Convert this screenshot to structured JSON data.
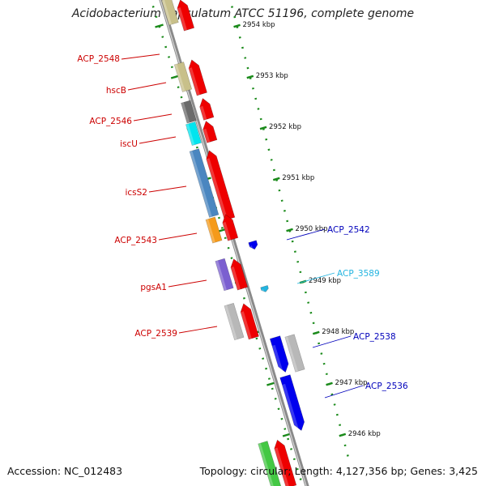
{
  "title": "Acidobacterium capsulatum ATCC 51196, complete genome",
  "footer": {
    "accession": "Accession: NC_012483",
    "stats": "Topology: circular; Length: 4,127,356 bp; Genes: 3,425"
  },
  "colors": {
    "backbone": "#8a8a8a",
    "tick": "#1a8a1a",
    "forward_label": "#cc0000",
    "reverse_label": "#0000bb",
    "light_label": "#22b4e0"
  },
  "ticks": [
    "2954 kbp",
    "2953 kbp",
    "2952 kbp",
    "2951 kbp",
    "2950 kbp",
    "2949 kbp",
    "2948 kbp",
    "2947 kbp",
    "2946 kbp"
  ],
  "left_labels": [
    {
      "text": "ACP_2548"
    },
    {
      "text": "hscB"
    },
    {
      "text": "ACP_2546"
    },
    {
      "text": "iscU"
    },
    {
      "text": "icsS2"
    },
    {
      "text": "ACP_2543"
    },
    {
      "text": "pgsA1"
    },
    {
      "text": "ACP_2539"
    }
  ],
  "right_labels": [
    {
      "text": "ACP_2542",
      "color": "#0000bb"
    },
    {
      "text": "ACP_3589",
      "color": "#22b4e0"
    },
    {
      "text": "ACP_2538",
      "color": "#0000bb"
    },
    {
      "text": "ACP_2536",
      "color": "#0000bb"
    }
  ],
  "feature_colors": {
    "cog": [
      "#c8c08a",
      "#c8c08a",
      "#6b6b6b",
      "#00e5ef",
      "#4a86c0",
      "#f59a1a",
      "#7b5fd0",
      "#b8b8b8",
      "#44c844"
    ],
    "forward_cds": "#ee0000",
    "reverse_cds": "#0000ee",
    "reverse_cog": "#b8b8b8",
    "trna": "#22b4e0"
  }
}
